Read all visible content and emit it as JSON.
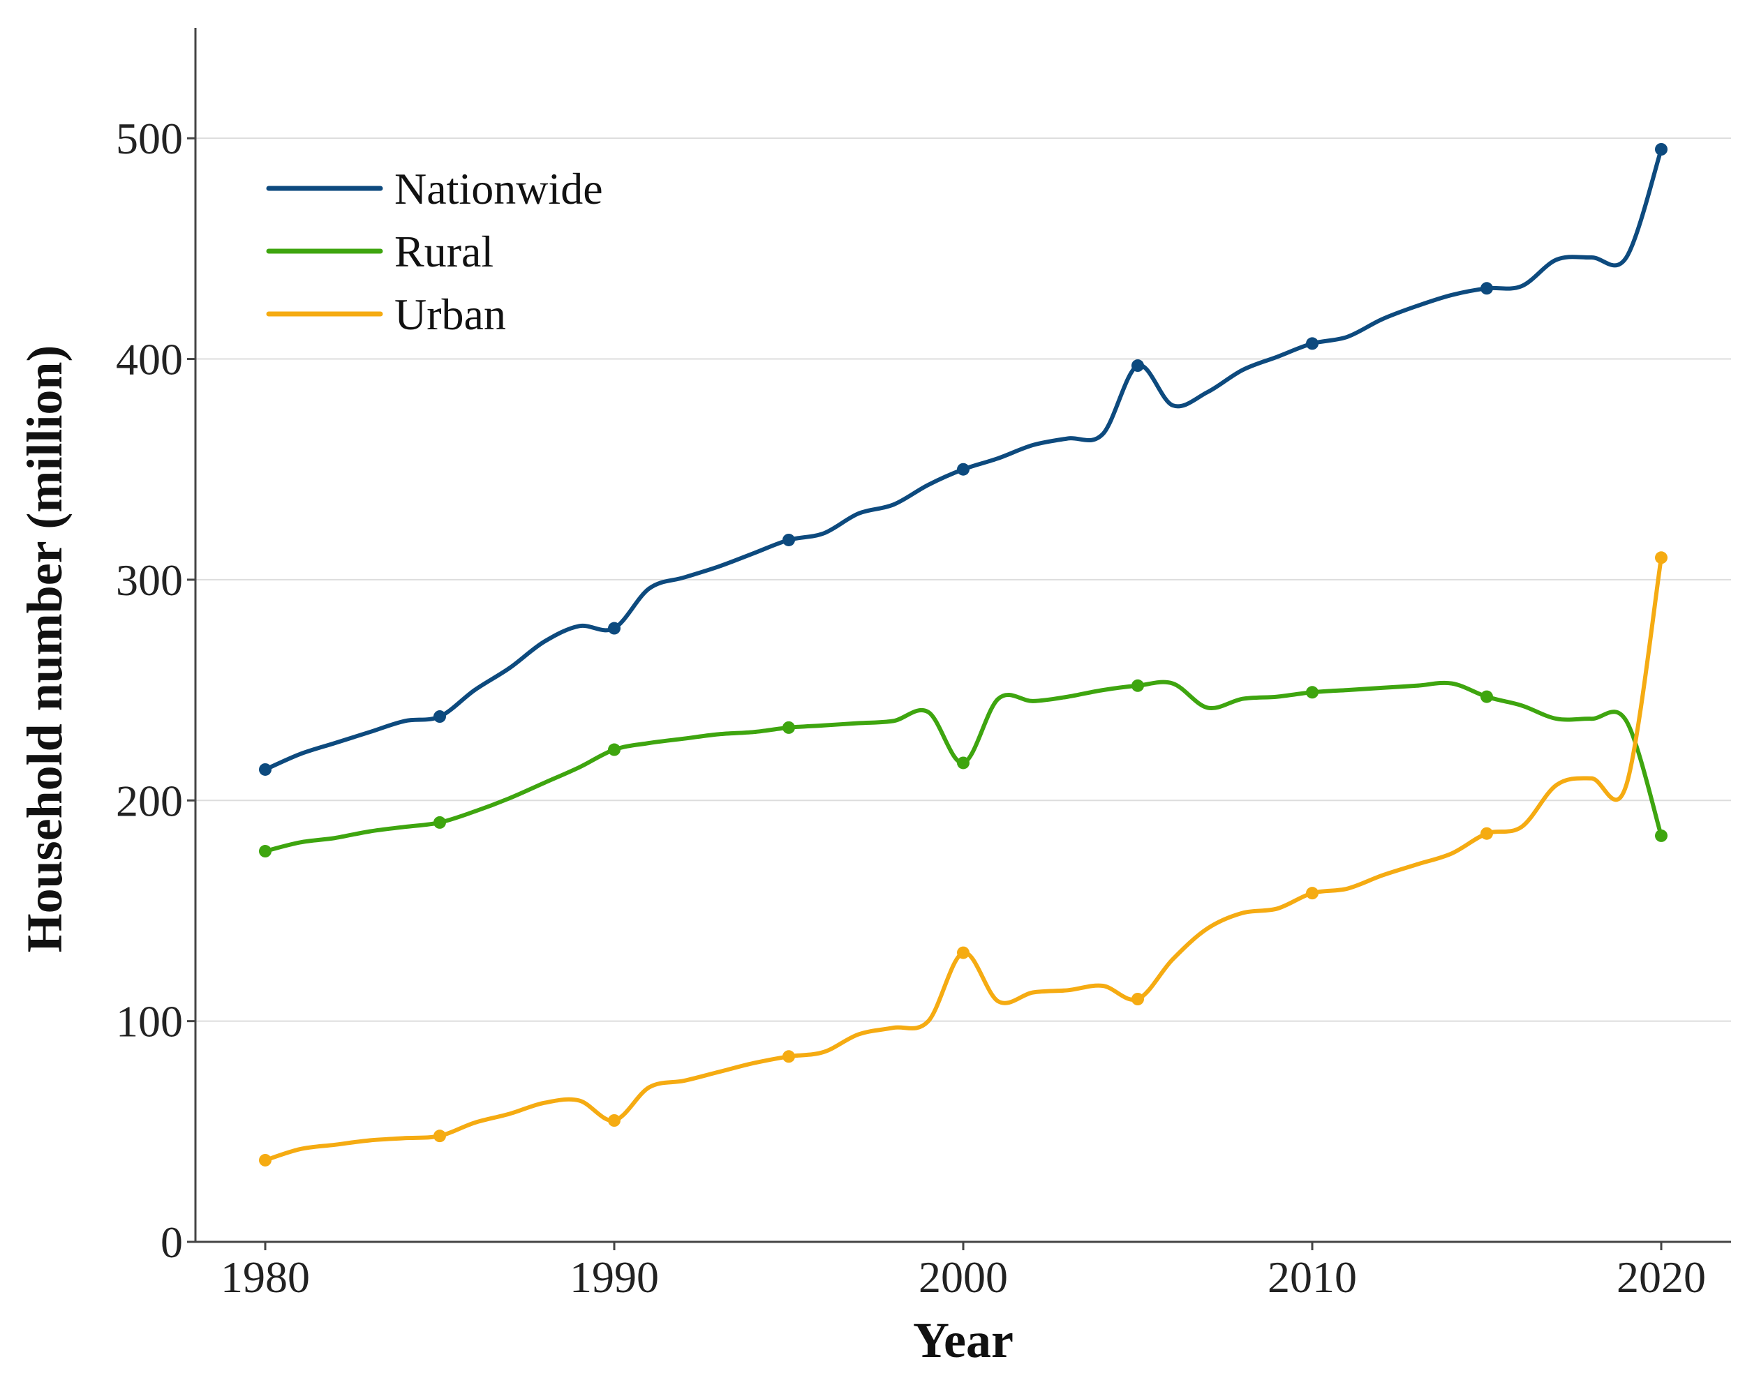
{
  "chart_data": {
    "type": "line",
    "title": "",
    "xlabel": "Year",
    "ylabel": "Household number (million)",
    "xlim": [
      1978,
      2022
    ],
    "ylim": [
      0,
      550
    ],
    "xticks": [
      1980,
      1990,
      2000,
      2010,
      2020
    ],
    "yticks": [
      0,
      100,
      200,
      300,
      400,
      500
    ],
    "x": [
      1980,
      1981,
      1982,
      1983,
      1984,
      1985,
      1986,
      1987,
      1988,
      1989,
      1990,
      1991,
      1992,
      1993,
      1994,
      1995,
      1996,
      1997,
      1998,
      1999,
      2000,
      2001,
      2002,
      2003,
      2004,
      2005,
      2006,
      2007,
      2008,
      2009,
      2010,
      2011,
      2012,
      2013,
      2014,
      2015,
      2016,
      2017,
      2018,
      2019,
      2020
    ],
    "marker_years": [
      1980,
      1985,
      1990,
      1995,
      2000,
      2005,
      2010,
      2015,
      2020
    ],
    "grid": true,
    "legend_position": "top-left",
    "series": [
      {
        "name": "Nationwide",
        "color": "#0d4a7e",
        "values": [
          214,
          221,
          226,
          231,
          236,
          238,
          250,
          260,
          272,
          279,
          278,
          296,
          301,
          306,
          312,
          318,
          321,
          330,
          334,
          343,
          350,
          355,
          361,
          364,
          366,
          397,
          379,
          385,
          395,
          401,
          407,
          410,
          418,
          424,
          429,
          432,
          433,
          445,
          446,
          446,
          495
        ]
      },
      {
        "name": "Rural",
        "color": "#3ea50f",
        "values": [
          177,
          181,
          183,
          186,
          188,
          190,
          195,
          201,
          208,
          215,
          223,
          226,
          228,
          230,
          231,
          233,
          234,
          235,
          236,
          240,
          217,
          246,
          245,
          247,
          250,
          252,
          253,
          242,
          246,
          247,
          249,
          250,
          251,
          252,
          253,
          247,
          243,
          237,
          237,
          236,
          184
        ]
      },
      {
        "name": "Urban",
        "color": "#f5ab12",
        "values": [
          37,
          42,
          44,
          46,
          47,
          48,
          54,
          58,
          63,
          64,
          55,
          70,
          73,
          77,
          81,
          84,
          86,
          94,
          97,
          100,
          131,
          109,
          113,
          114,
          116,
          110,
          128,
          142,
          149,
          151,
          158,
          160,
          166,
          171,
          176,
          185,
          188,
          207,
          210,
          207,
          310
        ]
      }
    ]
  }
}
